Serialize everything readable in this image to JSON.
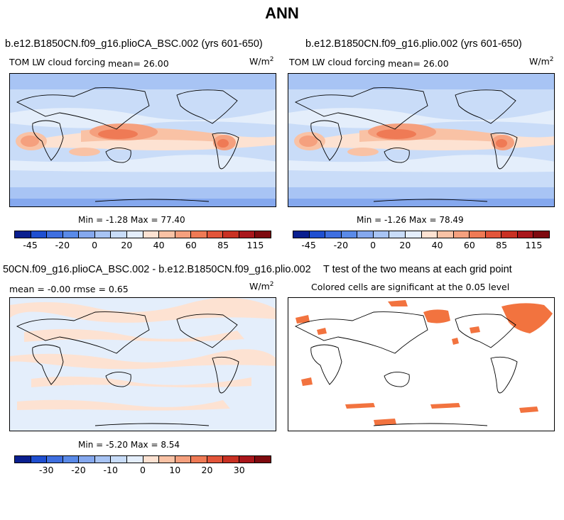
{
  "figure": {
    "title": "ANN"
  },
  "panels": {
    "p1": {
      "title": "b.e12.B1850CN.f09_g16.plioCA_BSC.002 (yrs 601-650)",
      "variable": "TOM LW cloud forcing",
      "mean_label": "mean=  26.00",
      "units_base": "W/m",
      "units_exp": "2",
      "minmax": "Min =  -1.28 Max =  77.40"
    },
    "p2": {
      "title": "b.e12.B1850CN.f09_g16.plio.002 (yrs 601-650)",
      "variable": "TOM LW cloud forcing",
      "mean_label": "mean=  26.00",
      "units_base": "W/m",
      "units_exp": "2",
      "minmax": "Min =  -1.26 Max =  78.49"
    },
    "p3": {
      "title": "50CN.f09_g16.plioCA_BSC.002 - b.e12.B1850CN.f09_g16.plio.002",
      "stats_label": "mean =  -0.00    rmse =   0.65",
      "units_base": "W/m",
      "units_exp": "2",
      "minmax": "Min =  -5.20 Max =   8.54"
    },
    "p4": {
      "title": "T test of the two means at each grid point",
      "subtitle": "Colored cells are significant at the 0.05 level"
    }
  },
  "colorbars": {
    "field": {
      "colors": [
        "#0a1f8f",
        "#1f4fd0",
        "#3f6fe0",
        "#5a8ae8",
        "#85a8ee",
        "#a8c4f4",
        "#c8dcf8",
        "#e4eefb",
        "#fde2d2",
        "#f9c2a5",
        "#f5a07e",
        "#ef7a55",
        "#e2553a",
        "#c93123",
        "#a9161b",
        "#7e0a0f"
      ],
      "ticks": [
        "-45",
        "-20",
        "0",
        "20",
        "40",
        "60",
        "85",
        "115"
      ]
    },
    "diff": {
      "colors": [
        "#0a1f8f",
        "#1f4fd0",
        "#3f6fe0",
        "#5a8ae8",
        "#85a8ee",
        "#a8c4f4",
        "#c8dcf8",
        "#e4eefb",
        "#fde2d2",
        "#f9c2a5",
        "#f5a07e",
        "#ef7a55",
        "#e2553a",
        "#c93123",
        "#a9161b",
        "#7e0a0f"
      ],
      "ticks": [
        "-30",
        "-20",
        "-10",
        "0",
        "10",
        "20",
        "30"
      ]
    }
  },
  "map_colors": {
    "ocean_base": "#c9dcf8",
    "pale_blue": "#e4eefb",
    "mid_blue": "#a8c4f4",
    "deep_blue": "#85a8ee",
    "pale_red": "#fde2d2",
    "light_red": "#f9c2a5",
    "mid_red": "#f5a07e",
    "strong_red": "#ef7a55",
    "deep_red": "#e2553a",
    "signif": "#f2733f"
  }
}
